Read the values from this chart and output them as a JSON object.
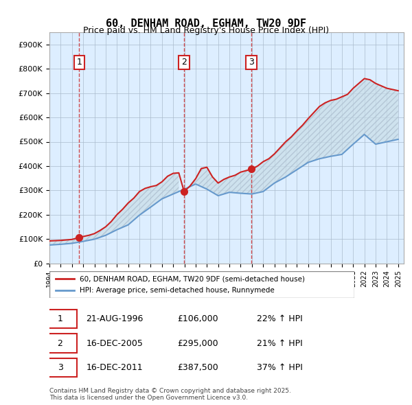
{
  "title": "60, DENHAM ROAD, EGHAM, TW20 9DF",
  "subtitle": "Price paid vs. HM Land Registry's House Price Index (HPI)",
  "legend_line1": "60, DENHAM ROAD, EGHAM, TW20 9DF (semi-detached house)",
  "legend_line2": "HPI: Average price, semi-detached house, Runnymede",
  "footnote": "Contains HM Land Registry data © Crown copyright and database right 2025.\nThis data is licensed under the Open Government Licence v3.0.",
  "sale_dates": [
    "1996-08-21",
    "2005-12-16",
    "2011-12-16"
  ],
  "sale_prices": [
    106000,
    295000,
    387500
  ],
  "sale_labels": [
    "1",
    "2",
    "3"
  ],
  "sale_above_pct": [
    "22%",
    "21%",
    "37%"
  ],
  "table_rows": [
    [
      "1",
      "21-AUG-1996",
      "£106,000",
      "22% ↑ HPI"
    ],
    [
      "2",
      "16-DEC-2005",
      "£295,000",
      "21% ↑ HPI"
    ],
    [
      "3",
      "16-DEC-2011",
      "£387,500",
      "37% ↑ HPI"
    ]
  ],
  "hpi_color": "#6699cc",
  "price_color": "#cc2222",
  "hatch_color": "#ccddee",
  "grid_color": "#aabbcc",
  "background_color": "#ddeeff",
  "ylim": [
    0,
    950000
  ],
  "xlim_start": 1994.0,
  "xlim_end": 2025.5,
  "hpi_x": [
    1994,
    1995,
    1996,
    1997,
    1998,
    1999,
    2000,
    2001,
    2002,
    2003,
    2004,
    2005,
    2006,
    2007,
    2008,
    2009,
    2010,
    2011,
    2012,
    2013,
    2014,
    2015,
    2016,
    2017,
    2018,
    2019,
    2020,
    2021,
    2022,
    2023,
    2024,
    2025
  ],
  "hpi_y": [
    75000,
    78000,
    82000,
    90000,
    99000,
    115000,
    138000,
    158000,
    198000,
    231000,
    265000,
    285000,
    305000,
    326000,
    305000,
    278000,
    292000,
    288000,
    285000,
    295000,
    330000,
    355000,
    385000,
    415000,
    430000,
    440000,
    448000,
    490000,
    530000,
    490000,
    500000,
    510000
  ],
  "price_x": [
    1994.0,
    1994.5,
    1995.0,
    1995.5,
    1996.0,
    1996.65,
    1997.0,
    1997.5,
    1998.0,
    1998.5,
    1999.0,
    1999.5,
    2000.0,
    2000.5,
    2001.0,
    2001.5,
    2002.0,
    2002.5,
    2003.0,
    2003.5,
    2004.0,
    2004.5,
    2005.0,
    2005.5,
    2005.97,
    2006.5,
    2007.0,
    2007.5,
    2008.0,
    2008.5,
    2009.0,
    2009.5,
    2010.0,
    2010.5,
    2011.0,
    2011.97,
    2012.5,
    2013.0,
    2013.5,
    2014.0,
    2014.5,
    2015.0,
    2015.5,
    2016.0,
    2016.5,
    2017.0,
    2017.5,
    2018.0,
    2018.5,
    2019.0,
    2019.5,
    2020.0,
    2020.5,
    2021.0,
    2021.5,
    2022.0,
    2022.5,
    2023.0,
    2023.5,
    2024.0,
    2024.5,
    2025.0
  ],
  "price_y": [
    92000,
    93000,
    94000,
    96000,
    98000,
    106000,
    110000,
    115000,
    122000,
    135000,
    150000,
    172000,
    200000,
    222000,
    248000,
    268000,
    295000,
    308000,
    315000,
    320000,
    335000,
    358000,
    370000,
    372000,
    295000,
    318000,
    348000,
    390000,
    395000,
    355000,
    330000,
    345000,
    355000,
    362000,
    375000,
    387500,
    400000,
    418000,
    430000,
    450000,
    475000,
    500000,
    520000,
    545000,
    568000,
    595000,
    620000,
    645000,
    660000,
    670000,
    675000,
    685000,
    695000,
    720000,
    740000,
    760000,
    755000,
    740000,
    730000,
    720000,
    715000,
    710000
  ]
}
